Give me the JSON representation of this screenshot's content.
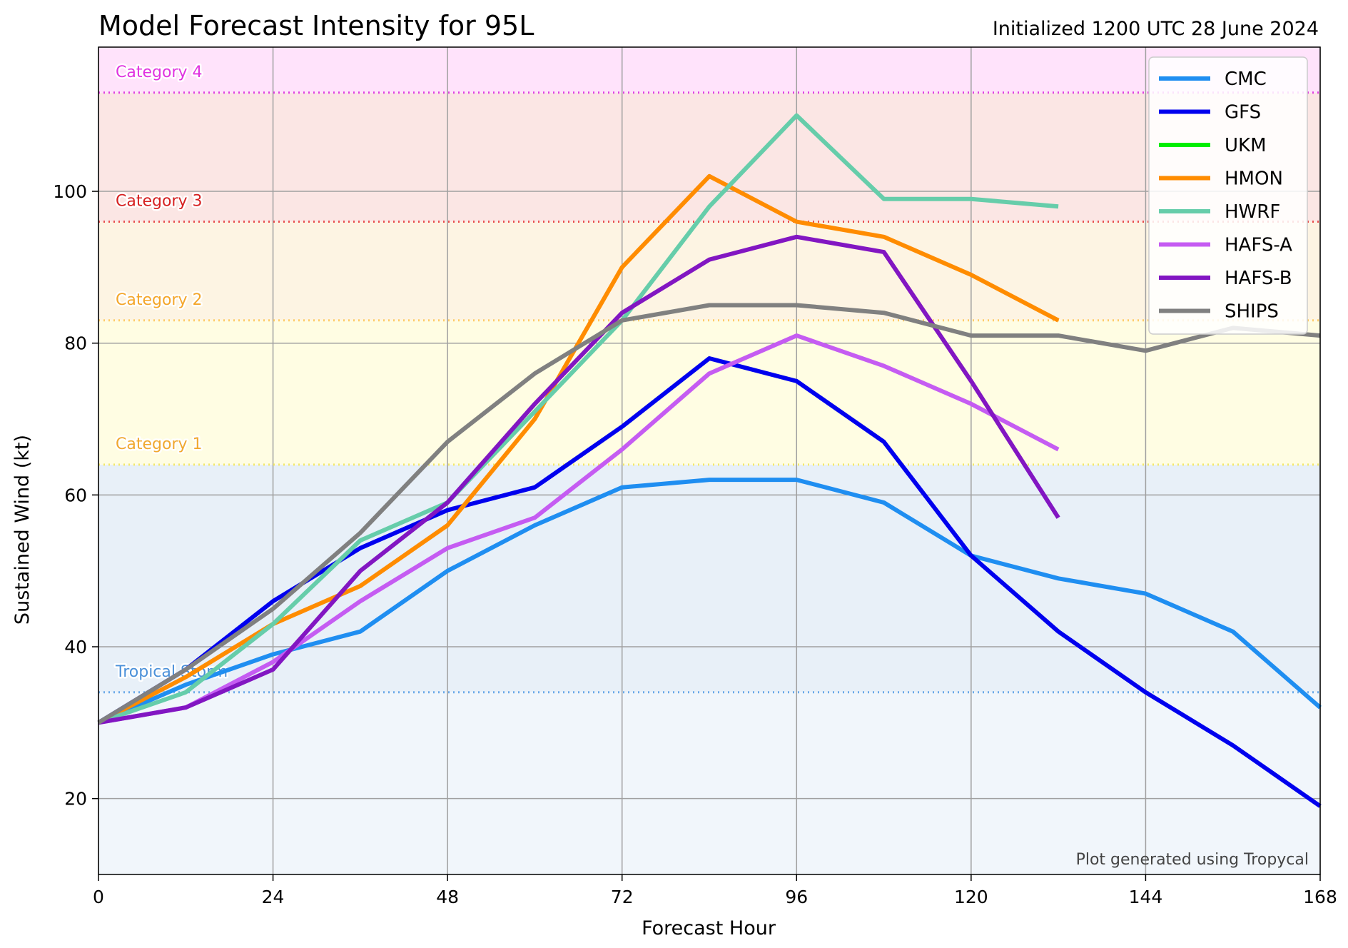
{
  "header": {
    "title": "Model Forecast Intensity for 95L",
    "subtitle": "Initialized 1200 UTC 28 June 2024"
  },
  "credit": "Plot generated using Tropycal",
  "categories": [
    {
      "label": "Tropical Storm",
      "threshold": 34,
      "line_color": "#6aa9e8",
      "text_color": "#4a90d9",
      "band_color": "#e8f0f8"
    },
    {
      "label": "Category 1",
      "threshold": 64,
      "line_color": "#f2e86a",
      "text_color": "#f0a830",
      "band_color": "#fffde3"
    },
    {
      "label": "Category 2",
      "threshold": 83,
      "line_color": "#ffcc66",
      "text_color": "#f4a62a",
      "band_color": "#fdf4e3"
    },
    {
      "label": "Category 3",
      "threshold": 96,
      "line_color": "#e85050",
      "text_color": "#d62020",
      "band_color": "#fbe6e4"
    },
    {
      "label": "Category 4",
      "threshold": 113,
      "line_color": "#e040e0",
      "text_color": "#e033e0",
      "band_color": "#ffe3fb"
    }
  ],
  "chart_data": {
    "type": "line",
    "title": "Model Forecast Intensity for 95L",
    "subtitle": "Initialized 1200 UTC 28 June 2024",
    "xlabel": "Forecast Hour",
    "ylabel": "Sustained Wind (kt)",
    "xlim": [
      0,
      168
    ],
    "ylim": [
      10,
      119
    ],
    "xticks": [
      0,
      24,
      48,
      72,
      96,
      120,
      144,
      168
    ],
    "yticks": [
      20,
      40,
      60,
      80,
      100
    ],
    "grid": true,
    "legend_position": "top-right",
    "series": [
      {
        "name": "CMC",
        "color": "#1f8ef1",
        "x": [
          0,
          12,
          24,
          36,
          48,
          60,
          72,
          84,
          96,
          108,
          120,
          132,
          144,
          156,
          168
        ],
        "y": [
          30,
          35,
          39,
          42,
          50,
          56,
          61,
          62,
          62,
          59,
          52,
          49,
          47,
          42,
          32
        ]
      },
      {
        "name": "GFS",
        "color": "#0000ee",
        "x": [
          0,
          12,
          24,
          36,
          48,
          60,
          72,
          84,
          96,
          108,
          120,
          132,
          144,
          156,
          168
        ],
        "y": [
          30,
          37,
          46,
          53,
          58,
          61,
          69,
          78,
          75,
          67,
          52,
          42,
          34,
          27,
          19
        ]
      },
      {
        "name": "UKM",
        "color": "#00ee00",
        "x": [],
        "y": []
      },
      {
        "name": "HMON",
        "color": "#ff8c00",
        "x": [
          0,
          12,
          24,
          36,
          48,
          60,
          72,
          84,
          96,
          108,
          120,
          132
        ],
        "y": [
          30,
          36,
          43,
          48,
          56,
          70,
          90,
          102,
          96,
          94,
          89,
          83
        ]
      },
      {
        "name": "HWRF",
        "color": "#66cdaa",
        "x": [
          0,
          12,
          24,
          36,
          48,
          60,
          72,
          84,
          96,
          108,
          120,
          132
        ],
        "y": [
          30,
          34,
          43,
          54,
          59,
          71,
          83,
          98,
          110,
          99,
          99,
          98
        ]
      },
      {
        "name": "HAFS-A",
        "color": "#c55cf2",
        "x": [
          0,
          12,
          24,
          36,
          48,
          60,
          72,
          84,
          96,
          108,
          120,
          132
        ],
        "y": [
          30,
          32,
          38,
          46,
          53,
          57,
          66,
          76,
          81,
          77,
          72,
          66
        ]
      },
      {
        "name": "HAFS-B",
        "color": "#8216c2",
        "x": [
          0,
          12,
          24,
          36,
          48,
          60,
          72,
          84,
          96,
          108,
          120,
          132
        ],
        "y": [
          30,
          32,
          37,
          50,
          59,
          72,
          84,
          91,
          94,
          92,
          75,
          57
        ]
      },
      {
        "name": "SHIPS",
        "color": "#808080",
        "x": [
          0,
          12,
          24,
          36,
          48,
          60,
          72,
          84,
          96,
          108,
          120,
          132,
          144,
          156,
          168
        ],
        "y": [
          30,
          37,
          45,
          55,
          67,
          76,
          83,
          85,
          85,
          84,
          81,
          81,
          79,
          82,
          81
        ]
      }
    ]
  }
}
